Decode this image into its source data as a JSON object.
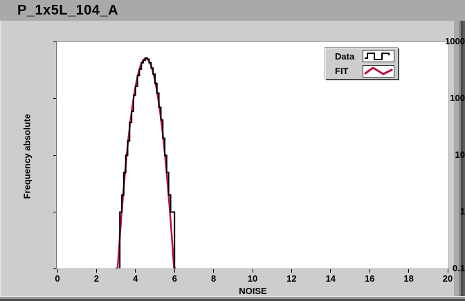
{
  "window": {
    "title": "P_1x5L_104_A"
  },
  "colors": {
    "titlebar": "#a9a9a9",
    "panel": "#cdcdcd",
    "plot_background": "#ffffff",
    "data_series": "#000000",
    "fit_series": "#be1240",
    "text": "#000000"
  },
  "legend": {
    "items": [
      {
        "label": "Data",
        "glyph": "step-icon"
      },
      {
        "label": "FIT",
        "glyph": "zigzag-icon"
      }
    ]
  },
  "chart_data": {
    "type": "bar",
    "subtype": "step-histogram-with-fit",
    "title": "P_1x5L_104_A",
    "xlabel": "NOISE",
    "ylabel": "Frequency absolute",
    "x_ticks": [
      0,
      2,
      4,
      6,
      8,
      10,
      12,
      14,
      16,
      18,
      20
    ],
    "y_ticks": [
      1000,
      100,
      10,
      1,
      0.1
    ],
    "xlim": [
      0,
      20
    ],
    "ylim": [
      0.1,
      1000
    ],
    "y_scale": "log",
    "grid": false,
    "legend_position": "top-right",
    "series": [
      {
        "name": "Data",
        "type": "step-histogram",
        "color": "#000000",
        "bin_start": 3.2,
        "bin_width": 0.1,
        "counts": [
          1,
          2,
          5,
          10,
          18,
          38,
          60,
          115,
          165,
          255,
          330,
          430,
          475,
          520,
          495,
          430,
          345,
          270,
          185,
          125,
          70,
          42,
          20,
          10,
          5,
          2,
          1,
          1
        ]
      },
      {
        "name": "FIT",
        "type": "gaussian-curve",
        "color": "#be1240",
        "amplitude": 510,
        "mean": 4.53,
        "sigma": 0.35,
        "x_range": [
          3.0,
          6.1
        ]
      }
    ]
  }
}
